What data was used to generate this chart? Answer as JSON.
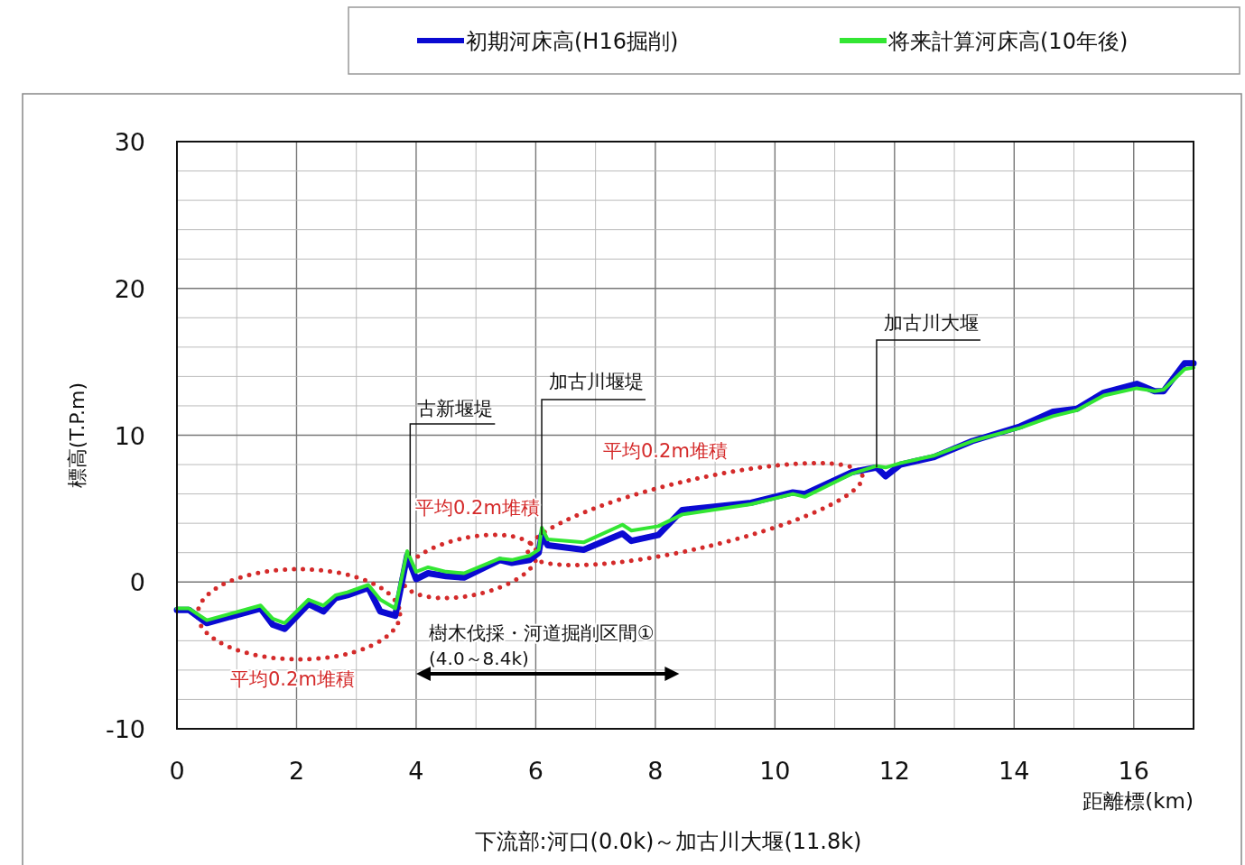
{
  "chart_data": {
    "type": "line",
    "xlabel": "距離標(km)",
    "ylabel": "標高(T.P.m)",
    "xlim": [
      0,
      17
    ],
    "xticks": [
      0,
      2,
      4,
      6,
      8,
      10,
      12,
      14,
      16
    ],
    "ylim": [
      -10,
      30
    ],
    "yticks": [
      -10,
      0,
      10,
      20,
      30
    ],
    "grid": true,
    "legend": "top",
    "line_style": "solid",
    "series": [
      {
        "name": "初期河床高(H16掘削)",
        "color": "#0a0ad2",
        "x": [
          0,
          0.2,
          0.5,
          1.4,
          1.6,
          1.8,
          2.2,
          2.45,
          2.65,
          2.85,
          3.2,
          3.4,
          3.65,
          3.85,
          4.0,
          4.2,
          4.5,
          4.8,
          5.4,
          5.6,
          5.9,
          6.05,
          6.1,
          6.2,
          6.8,
          7.45,
          7.6,
          8.05,
          8.45,
          9.6,
          10.3,
          10.5,
          11.3,
          11.7,
          11.85,
          12.1,
          12.65,
          13.3,
          14.1,
          14.65,
          15.05,
          15.5,
          16.05,
          16.35,
          16.5,
          16.85,
          17.0
        ],
        "values": [
          -1.9,
          -1.9,
          -2.8,
          -1.8,
          -2.9,
          -3.2,
          -1.5,
          -2.0,
          -1.1,
          -0.9,
          -0.4,
          -2.0,
          -2.3,
          1.8,
          0.2,
          0.6,
          0.4,
          0.3,
          1.5,
          1.3,
          1.5,
          2.0,
          3.2,
          2.5,
          2.2,
          3.3,
          2.8,
          3.2,
          4.9,
          5.4,
          6.1,
          6.0,
          7.5,
          7.8,
          7.2,
          8.0,
          8.5,
          9.6,
          10.6,
          11.6,
          11.8,
          12.9,
          13.5,
          13.0,
          13.0,
          14.9,
          14.9
        ]
      },
      {
        "name": "将来計算河床高(10年後)",
        "color": "#33e633",
        "x": [
          0,
          0.2,
          0.5,
          1.4,
          1.6,
          1.8,
          2.2,
          2.45,
          2.65,
          2.85,
          3.2,
          3.4,
          3.65,
          3.85,
          4.0,
          4.2,
          4.5,
          4.8,
          5.4,
          5.6,
          5.9,
          6.05,
          6.1,
          6.2,
          6.8,
          7.45,
          7.6,
          8.05,
          8.45,
          9.6,
          10.3,
          10.5,
          11.3,
          11.7,
          11.85,
          12.1,
          12.65,
          13.3,
          14.1,
          14.65,
          15.05,
          15.5,
          16.05,
          16.35,
          16.5,
          16.85,
          17.0
        ],
        "values": [
          -1.8,
          -1.8,
          -2.6,
          -1.6,
          -2.5,
          -2.8,
          -1.2,
          -1.6,
          -0.9,
          -0.7,
          -0.2,
          -1.2,
          -1.8,
          2.1,
          0.7,
          1.0,
          0.7,
          0.6,
          1.6,
          1.5,
          1.8,
          2.2,
          3.7,
          2.9,
          2.7,
          3.9,
          3.5,
          3.8,
          4.6,
          5.3,
          6.0,
          5.8,
          7.4,
          7.9,
          7.8,
          8.1,
          8.6,
          9.6,
          10.5,
          11.3,
          11.7,
          12.7,
          13.2,
          13.0,
          13.1,
          14.5,
          14.6
        ]
      }
    ],
    "annotations": [
      {
        "text": "古新堰堤",
        "x": 3.9,
        "y": 1.8
      },
      {
        "text": "加古川堰堤",
        "x": 6.1,
        "y": 3.2
      },
      {
        "text": "加古川大堰",
        "x": 11.7,
        "y": 7.8
      },
      "平均0.2m堆積",
      "平均0.2m堆積",
      "平均0.2m堆積",
      "樹木伐採・河道掘削区間①",
      "(4.0～8.4k)",
      "下流部:河口(0.0k)～加古川大堰(11.8k)"
    ]
  }
}
